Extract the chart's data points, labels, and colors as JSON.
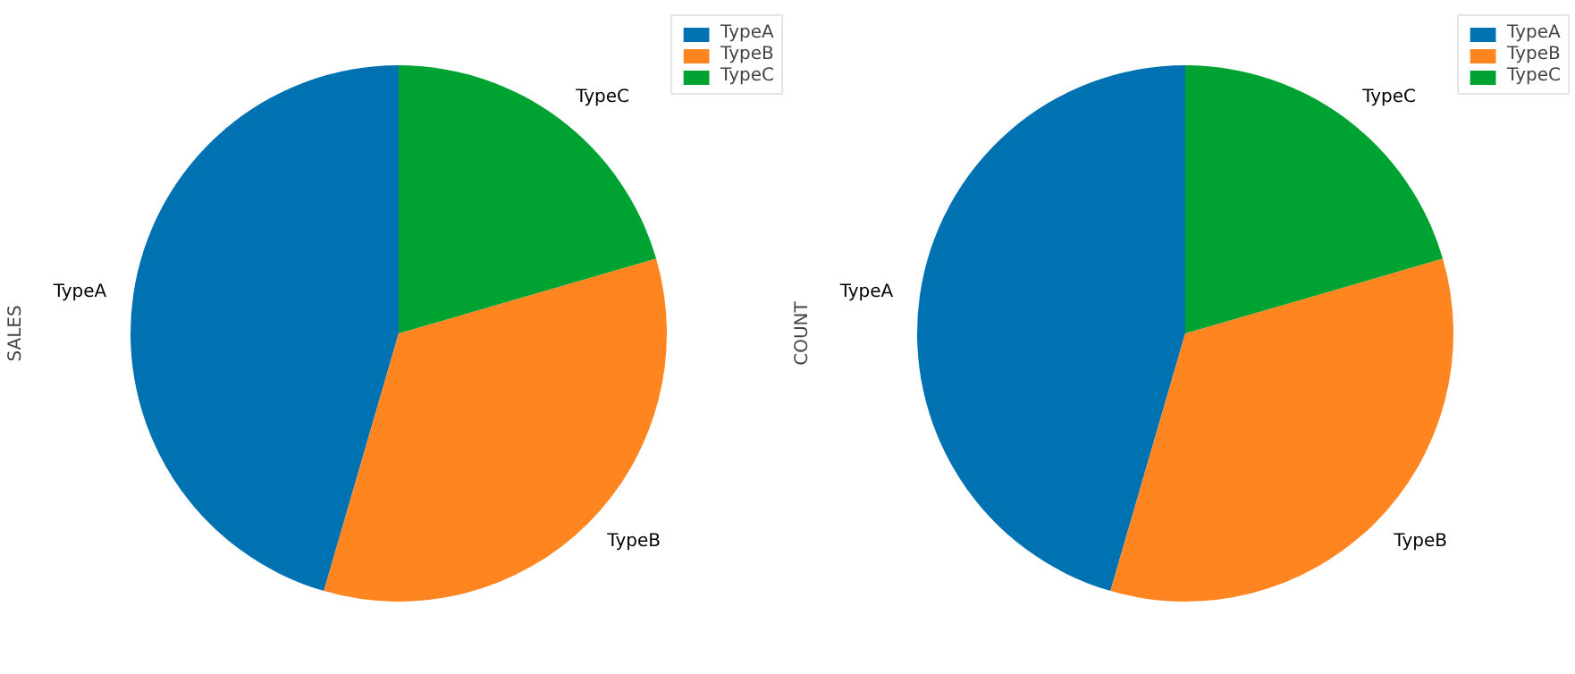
{
  "chart_data": [
    {
      "type": "pie",
      "ylabel": "SALES",
      "categories": [
        "TypeA",
        "TypeB",
        "TypeC"
      ],
      "values": [
        45.5,
        34,
        20.5
      ],
      "colors": [
        "#0072b2",
        "#ff8521",
        "#00a331"
      ],
      "legend": "top right"
    },
    {
      "type": "pie",
      "ylabel": "COUNT",
      "categories": [
        "TypeA",
        "TypeB",
        "TypeC"
      ],
      "values": [
        45.5,
        34,
        20.5
      ],
      "colors": [
        "#0072b2",
        "#ff8521",
        "#00a331"
      ],
      "legend": "top right"
    }
  ]
}
